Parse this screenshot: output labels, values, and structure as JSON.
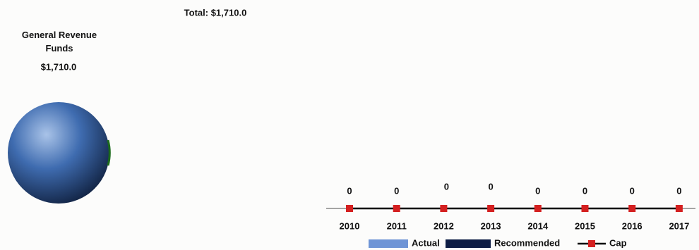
{
  "chart_data": [
    {
      "type": "pie",
      "title": "Total: $1,710.0",
      "categories": [
        "General Revenue Funds"
      ],
      "values": [
        1710.0
      ],
      "value_labels": [
        "$1,710.0"
      ],
      "colors": [
        "#3f6cb0"
      ]
    },
    {
      "type": "bar",
      "categories": [
        "2010",
        "2011",
        "2012",
        "2013",
        "2014",
        "2015",
        "2016",
        "2017"
      ],
      "series": [
        {
          "name": "Actual",
          "color": "#6f95d6",
          "values": [
            0,
            0,
            0,
            0,
            0,
            0,
            0,
            0
          ]
        },
        {
          "name": "Recommended",
          "color": "#0d1d45",
          "values": [
            0,
            0,
            0,
            0,
            0,
            0,
            0,
            0
          ]
        },
        {
          "name": "Cap",
          "type": "line",
          "color": "#000000",
          "marker_color": "#d42020",
          "values": [
            0,
            0,
            0,
            0,
            0,
            0,
            0,
            0
          ]
        }
      ]
    }
  ]
}
